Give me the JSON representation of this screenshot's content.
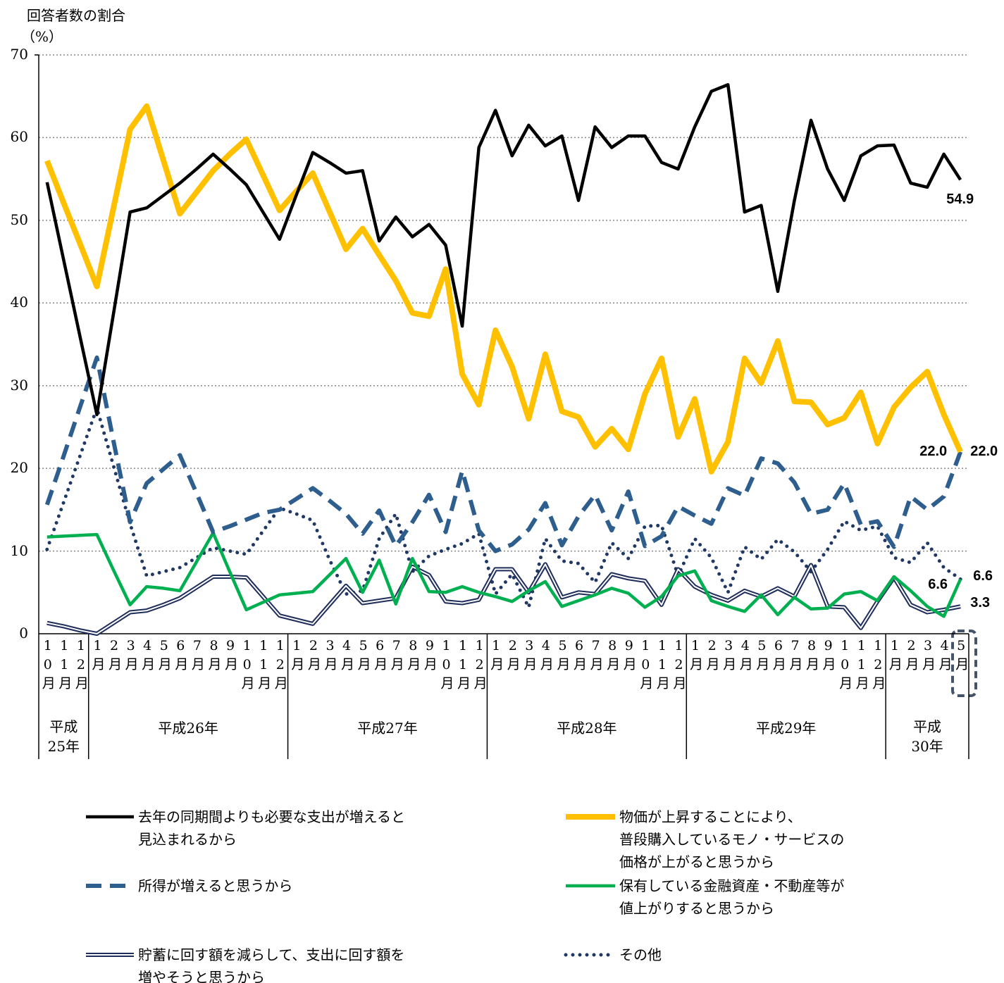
{
  "chart_data": {
    "type": "line",
    "y_axis_title": "回答者数の割合",
    "y_axis_unit": "（%）",
    "ylim": [
      0,
      70
    ],
    "yticks": [
      0,
      10,
      20,
      30,
      40,
      50,
      60,
      70
    ],
    "grid": true,
    "categories": [
      "10月",
      "11月",
      "12月",
      "1月",
      "2月",
      "3月",
      "4月",
      "5月",
      "6月",
      "7月",
      "8月",
      "9月",
      "10月",
      "11月",
      "12月",
      "1月",
      "2月",
      "3月",
      "4月",
      "5月",
      "6月",
      "7月",
      "8月",
      "9月",
      "10月",
      "11月",
      "12月",
      "1月",
      "2月",
      "3月",
      "4月",
      "5月",
      "6月",
      "7月",
      "8月",
      "9月",
      "10月",
      "11月",
      "12月",
      "1月",
      "2月",
      "3月",
      "4月",
      "5月",
      "6月",
      "7月",
      "8月",
      "9月",
      "10月",
      "11月",
      "12月",
      "1月",
      "2月",
      "3月",
      "4月",
      "5月"
    ],
    "year_groups": [
      {
        "label": "平成25年",
        "months": 3
      },
      {
        "label": "平成26年",
        "months": 12
      },
      {
        "label": "平成27年",
        "months": 12
      },
      {
        "label": "平成28年",
        "months": 12
      },
      {
        "label": "平成29年",
        "months": 12
      },
      {
        "label": "平成30年",
        "months": 5
      }
    ],
    "series": [
      {
        "name": "去年の同期間よりも必要な支出が増えると\n見込まれるから",
        "color": "#000000",
        "style": "solid",
        "values": [
          54.6,
          45.2,
          35.8,
          26.5,
          38.7,
          51.0,
          51.5,
          53.0,
          54.5,
          56.2,
          58.0,
          56.2,
          54.3,
          51.0,
          47.7,
          53.0,
          58.2,
          57.0,
          55.7,
          56.0,
          47.5,
          50.4,
          48.0,
          49.5,
          47.0,
          37.2,
          58.8,
          63.3,
          57.8,
          61.5,
          59.0,
          60.2,
          52.4,
          61.3,
          58.8,
          60.2,
          60.2,
          57.0,
          56.2,
          61.3,
          65.6,
          66.4,
          51.0,
          51.8,
          41.4,
          52.4,
          62.1,
          56.2,
          52.4,
          57.8,
          59.0,
          59.1,
          54.5,
          54.0,
          58.0,
          54.9
        ],
        "value_labels": [
          null,
          null,
          null,
          null,
          null,
          null,
          null,
          null,
          null,
          null,
          null,
          null,
          null,
          null,
          null,
          null,
          null,
          null,
          null,
          null,
          null,
          null,
          null,
          null,
          null,
          null,
          null,
          null,
          null,
          null,
          null,
          null,
          null,
          null,
          null,
          null,
          null,
          null,
          null,
          null,
          null,
          null,
          null,
          null,
          null,
          null,
          null,
          null,
          null,
          null,
          null,
          null,
          null,
          null,
          null,
          "54.9"
        ]
      },
      {
        "name": "物価が上昇することにより、\n普段購入しているモノ・サービスの\n価格が上がると思うから",
        "color": "#FFC000",
        "style": "solid",
        "values": [
          57.2,
          52.1,
          47.1,
          42.0,
          51.5,
          61.0,
          63.8,
          57.3,
          50.8,
          53.4,
          56.0,
          58.0,
          59.8,
          55.5,
          51.2,
          53.5,
          55.7,
          51.1,
          46.5,
          49.0,
          45.8,
          42.7,
          38.8,
          38.4,
          44.1,
          31.4,
          27.7,
          36.7,
          32.3,
          26.0,
          33.8,
          26.9,
          26.2,
          22.6,
          24.8,
          22.3,
          29.0,
          33.3,
          23.8,
          28.4,
          19.6,
          23.2,
          33.3,
          30.3,
          35.4,
          28.1,
          28.0,
          25.3,
          26.1,
          29.2,
          23.0,
          27.4,
          29.8,
          31.7,
          26.5,
          22.0
        ],
        "value_labels": [
          null,
          null,
          null,
          null,
          null,
          null,
          null,
          null,
          null,
          null,
          null,
          null,
          null,
          null,
          null,
          null,
          null,
          null,
          null,
          null,
          null,
          null,
          null,
          null,
          null,
          null,
          null,
          null,
          null,
          null,
          null,
          null,
          null,
          null,
          null,
          null,
          null,
          null,
          null,
          null,
          null,
          null,
          null,
          null,
          null,
          null,
          null,
          null,
          null,
          null,
          null,
          null,
          null,
          null,
          null,
          "22.0"
        ]
      },
      {
        "name": "所得が増えると思うから",
        "color": "#2E5E8E",
        "style": "dashed",
        "values": [
          15.6,
          21.5,
          27.5,
          33.4,
          23.3,
          13.5,
          18.2,
          19.9,
          21.6,
          17.0,
          12.3,
          13.0,
          13.8,
          14.6,
          15.0,
          16.3,
          17.6,
          16.1,
          14.5,
          12.1,
          14.9,
          10.6,
          13.5,
          16.8,
          12.3,
          19.7,
          12.5,
          10.0,
          10.8,
          12.6,
          15.8,
          10.7,
          14.2,
          16.8,
          12.5,
          17.2,
          10.6,
          11.8,
          15.4,
          14.3,
          13.3,
          17.6,
          16.7,
          21.2,
          20.6,
          18.3,
          14.5,
          15.0,
          18.2,
          13.2,
          13.6,
          10.5,
          16.6,
          15.0,
          16.6,
          22.0
        ],
        "value_labels": [
          null,
          null,
          null,
          null,
          null,
          null,
          null,
          null,
          null,
          null,
          null,
          null,
          null,
          null,
          null,
          null,
          null,
          null,
          null,
          null,
          null,
          null,
          null,
          null,
          null,
          null,
          null,
          null,
          null,
          null,
          null,
          null,
          null,
          null,
          null,
          null,
          null,
          null,
          null,
          null,
          null,
          null,
          null,
          null,
          null,
          null,
          null,
          null,
          null,
          null,
          null,
          null,
          null,
          null,
          null,
          "22.0"
        ]
      },
      {
        "name": "保有している金融資産・不動産等が\n値上がりすると思うから",
        "color": "#00B050",
        "style": "solid",
        "values": [
          11.7,
          11.8,
          11.9,
          12.0,
          7.7,
          3.5,
          5.7,
          5.5,
          5.2,
          8.7,
          12.2,
          7.5,
          2.9,
          3.8,
          4.7,
          4.9,
          5.1,
          7.1,
          9.1,
          5.0,
          8.9,
          3.6,
          9.1,
          5.1,
          5.0,
          5.7,
          5.0,
          4.5,
          3.9,
          5.2,
          6.3,
          3.3,
          4.0,
          4.7,
          5.5,
          4.9,
          3.2,
          4.5,
          7.0,
          7.6,
          4.0,
          3.3,
          2.7,
          4.7,
          2.3,
          4.4,
          3.0,
          3.1,
          4.8,
          5.1,
          4.0,
          6.9,
          5.2,
          3.3,
          2.1,
          6.6
        ],
        "value_labels": [
          null,
          null,
          null,
          null,
          null,
          null,
          null,
          null,
          null,
          null,
          null,
          null,
          null,
          null,
          null,
          null,
          null,
          null,
          null,
          null,
          null,
          null,
          null,
          null,
          null,
          null,
          null,
          null,
          null,
          null,
          null,
          null,
          null,
          null,
          null,
          null,
          null,
          null,
          null,
          null,
          null,
          null,
          null,
          null,
          null,
          null,
          null,
          null,
          null,
          null,
          null,
          null,
          null,
          null,
          null,
          "6.6"
        ]
      },
      {
        "name": "貯蓄に回す額を減らして、支出に回す額を\n増やそうと思うから",
        "color": "#1F2D5A",
        "style": "double",
        "values": [
          1.3,
          0.9,
          0.4,
          0.0,
          1.3,
          2.6,
          2.8,
          3.5,
          4.3,
          5.6,
          6.9,
          6.9,
          6.8,
          4.5,
          2.2,
          1.7,
          1.2,
          3.5,
          5.8,
          3.7,
          4.0,
          4.3,
          8.1,
          7.1,
          3.9,
          3.7,
          4.1,
          7.8,
          7.8,
          5.0,
          8.4,
          4.4,
          5.0,
          4.8,
          7.2,
          6.7,
          6.4,
          3.5,
          7.8,
          5.7,
          4.7,
          4.0,
          5.2,
          4.5,
          5.5,
          4.5,
          8.3,
          3.3,
          3.2,
          0.7,
          3.9,
          6.8,
          3.5,
          2.6,
          2.9,
          3.3
        ],
        "value_labels": [
          null,
          null,
          null,
          null,
          null,
          null,
          null,
          null,
          null,
          null,
          null,
          null,
          null,
          null,
          null,
          null,
          null,
          null,
          null,
          null,
          null,
          null,
          null,
          null,
          null,
          null,
          null,
          null,
          null,
          null,
          null,
          null,
          null,
          null,
          null,
          null,
          null,
          null,
          null,
          null,
          null,
          null,
          null,
          null,
          null,
          null,
          null,
          null,
          null,
          null,
          null,
          null,
          null,
          null,
          null,
          "3.3"
        ]
      },
      {
        "name": "その他",
        "color": "#1F3864",
        "style": "dotted",
        "values": [
          10.2,
          15.9,
          21.6,
          27.3,
          20.3,
          13.3,
          7.0,
          7.5,
          8.0,
          9.2,
          10.4,
          10.0,
          9.6,
          12.4,
          15.2,
          14.5,
          13.7,
          9.0,
          4.8,
          5.2,
          11.5,
          14.5,
          7.5,
          9.4,
          10.2,
          10.9,
          12.1,
          4.8,
          7.2,
          3.2,
          11.5,
          8.8,
          8.5,
          6.2,
          11.0,
          9.1,
          13.0,
          13.1,
          7.0,
          11.5,
          9.2,
          5.0,
          10.5,
          9.0,
          11.4,
          9.9,
          7.5,
          10.2,
          13.6,
          12.5,
          13.0,
          9.2,
          8.6,
          11.0,
          8.0,
          6.6
        ],
        "value_labels": [
          null,
          null,
          null,
          null,
          null,
          null,
          null,
          null,
          null,
          null,
          null,
          null,
          null,
          null,
          null,
          null,
          null,
          null,
          null,
          null,
          null,
          null,
          null,
          null,
          null,
          null,
          null,
          null,
          null,
          null,
          null,
          null,
          null,
          null,
          null,
          null,
          null,
          null,
          null,
          null,
          null,
          null,
          null,
          null,
          null,
          null,
          null,
          null,
          null,
          null,
          null,
          null,
          null,
          null,
          null,
          "6.6"
        ]
      }
    ]
  }
}
